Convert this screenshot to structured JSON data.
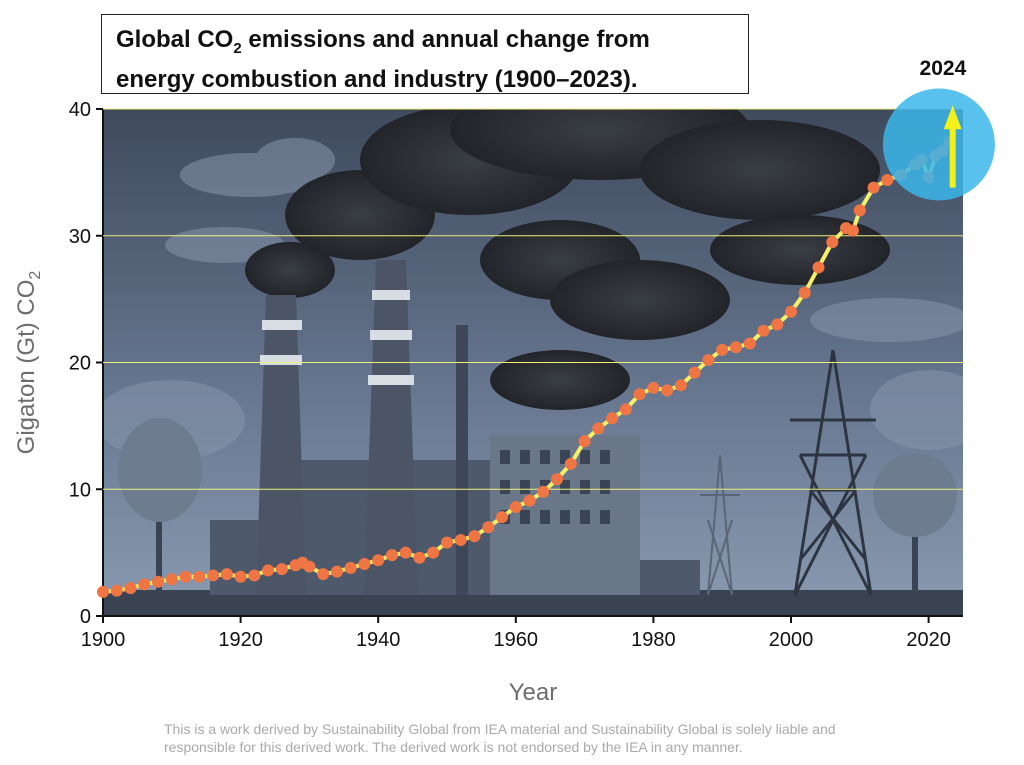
{
  "title": {
    "line1_pre": "Global CO",
    "line1_sub": "2",
    "line1_post": " emissions and annual change from",
    "line2": "energy combustion and industry (1900–2023)."
  },
  "footnote": {
    "line1": "This is a work derived by Sustainability Global from IEA material and Sustainability Global is solely liable and",
    "line2": "responsible for this derived work. The derived work is not endorsed by the IEA in any manner."
  },
  "highlight": {
    "label": "2024",
    "color": "#3bb6ea",
    "arrow_color": "#f2f21a"
  },
  "colors": {
    "line": "#f6ef6a",
    "marker": "#f07545",
    "gridline": "#f0f07a",
    "sky": "#5c6b82",
    "smoke": "#2a2d32"
  },
  "icons": [
    "factory-illustration",
    "smokestack-icon",
    "power-pylon-icon",
    "tree-icon",
    "cloud-icon"
  ],
  "chart_data": {
    "type": "line",
    "xlabel": "Year",
    "ylabel_pre": "Gigaton (Gt) CO",
    "ylabel_sub": "2",
    "xlim": [
      1900,
      2025
    ],
    "ylim": [
      0,
      40
    ],
    "xticks": [
      1900,
      1920,
      1940,
      1960,
      1980,
      2000,
      2020
    ],
    "yticks": [
      0,
      10,
      20,
      30,
      40
    ],
    "grid": true,
    "series": [
      {
        "x": [
          1900,
          1902,
          1904,
          1906,
          1908,
          1910,
          1912,
          1914,
          1916,
          1918,
          1920,
          1922,
          1924,
          1926,
          1928,
          1929,
          1930,
          1932,
          1934,
          1936,
          1938,
          1940,
          1942,
          1944,
          1946,
          1948,
          1950,
          1952,
          1954,
          1956,
          1958,
          1960,
          1962,
          1964,
          1966,
          1968,
          1970,
          1972,
          1974,
          1976,
          1978,
          1980,
          1982,
          1984,
          1986,
          1988,
          1990,
          1992,
          1994,
          1996,
          1998,
          2000,
          2002,
          2004,
          2006,
          2008,
          2009,
          2010,
          2012,
          2014,
          2016,
          2018,
          2019,
          2020,
          2021,
          2022,
          2023
        ],
        "y": [
          1.9,
          2.0,
          2.2,
          2.5,
          2.7,
          2.9,
          3.1,
          3.1,
          3.2,
          3.3,
          3.1,
          3.2,
          3.6,
          3.7,
          4.0,
          4.2,
          3.9,
          3.3,
          3.5,
          3.8,
          4.1,
          4.4,
          4.8,
          5.0,
          4.6,
          5.0,
          5.8,
          6.0,
          6.3,
          7.0,
          7.8,
          8.6,
          9.1,
          9.8,
          10.8,
          12.0,
          13.8,
          14.8,
          15.6,
          16.3,
          17.5,
          18.0,
          17.8,
          18.2,
          19.2,
          20.2,
          21.0,
          21.2,
          21.5,
          22.5,
          23.0,
          24.0,
          25.5,
          27.5,
          29.5,
          30.6,
          30.4,
          32.0,
          33.8,
          34.4,
          34.8,
          35.6,
          36.0,
          34.6,
          36.3,
          36.7,
          37.4
        ]
      }
    ]
  }
}
